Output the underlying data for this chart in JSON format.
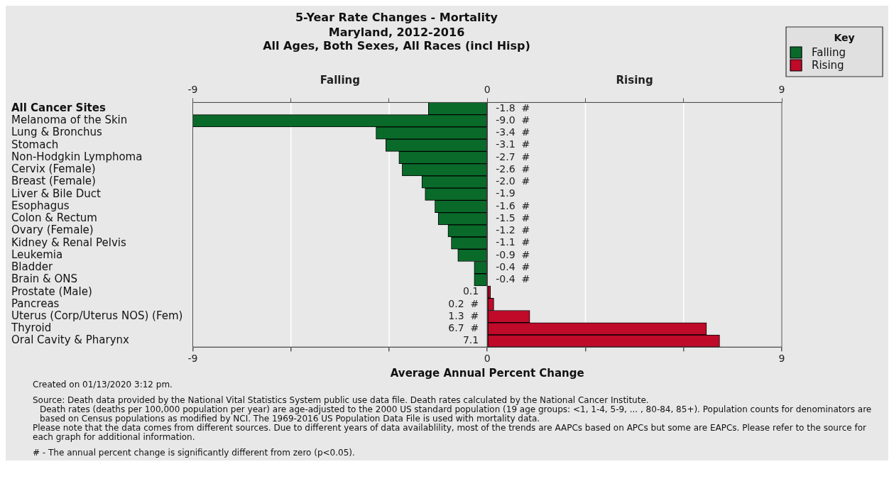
{
  "chart_data": {
    "type": "bar",
    "orientation": "horizontal",
    "title": "5-Year Rate Changes - Mortality",
    "subtitle": "Maryland, 2012-2016\nAll Ages, Both Sexes, All Races (incl Hisp)",
    "xlabel": "Average Annual Percent Change",
    "legend_title": "Key",
    "legend": "top right",
    "grid": "x",
    "categories": [
      "All Cancer Sites",
      "Melanoma of the Skin",
      "Lung & Bronchus",
      "Stomach",
      "Non-Hodgkin Lymphoma",
      "Cervix (Female)",
      "Breast (Female)",
      "Liver & Bile Duct",
      "Esophagus",
      "Colon & Rectum",
      "Ovary (Female)",
      "Kidney & Renal Pelvis",
      "Leukemia",
      "Bladder",
      "Brain & ONS",
      "Prostate (Male)",
      "Pancreas",
      "Uterus (Corp/Uterus NOS) (Fem)",
      "Thyroid",
      "Oral Cavity & Pharynx"
    ],
    "series": [
      {
        "name": "Falling",
        "color": "#0a6a2a",
        "values": [
          -1.8,
          -9.0,
          -3.4,
          -3.1,
          -2.7,
          -2.6,
          -2.0,
          -1.9,
          -1.6,
          -1.5,
          -1.2,
          -1.1,
          -0.9,
          -0.4,
          -0.4,
          null,
          null,
          null,
          null,
          null
        ],
        "value_labels": [
          "-1.8  #",
          "-9.0  #",
          "-3.4  #",
          "-3.1  #",
          "-2.7  #",
          "-2.6  #",
          "-2.0  #",
          "-1.9",
          "-1.6  #",
          "-1.5  #",
          "-1.2  #",
          "-1.1  #",
          "-0.9  #",
          "-0.4  #",
          "-0.4  #",
          null,
          null,
          null,
          null,
          null
        ]
      },
      {
        "name": "Rising",
        "color": "#bf0a2a",
        "values": [
          null,
          null,
          null,
          null,
          null,
          null,
          null,
          null,
          null,
          null,
          null,
          null,
          null,
          null,
          null,
          0.1,
          0.2,
          1.3,
          6.7,
          7.1
        ],
        "value_labels": [
          null,
          null,
          null,
          null,
          null,
          null,
          null,
          null,
          null,
          null,
          null,
          null,
          null,
          null,
          null,
          "0.1",
          "0.2  #",
          "1.3  #",
          "6.7  #",
          "7.1"
        ]
      }
    ],
    "xlim": [
      -9,
      9
    ],
    "xticks": [
      -9,
      {
        "value": -6,
        "label": null
      },
      {
        "value": -3,
        "label": null
      },
      0,
      {
        "value": 3,
        "label": null
      },
      {
        "value": 6,
        "label": null
      },
      9
    ],
    "x2lim": [
      -9,
      9
    ],
    "x2ticks": [
      -9,
      {
        "value": -6,
        "label": null
      },
      {
        "value": -3,
        "label": null
      },
      0,
      {
        "value": 3,
        "label": null
      },
      {
        "value": 6,
        "label": null
      },
      9
    ],
    "ref_lines": [
      {
        "axis": "x",
        "value": 0
      }
    ],
    "annotations": [
      "Falling",
      "Rising",
      "Created on 01/13/2020 3:12 pm.",
      "Source: Death data provided by the National Vital Statistics System public use data file. Death rates calculated by the National Cancer Institute.",
      "Death rates (deaths per 100,000 population per year) are age-adjusted to the 2000 US standard population (19 age groups: <1, 1-4, 5-9, ... , 80-84, 85+). Population counts for denominators are based on Census populations as modified by NCI. The 1969-2016 US Population Data File is used with mortality data.",
      "Please note that the data comes from different sources. Due to different years of data availablility, most of the trends are AAPCs based on APCs but some are EAPCs. Please refer to the source for each graph for additional information.",
      "# - The annual percent change is significantly different from zero (p<0.05)."
    ]
  }
}
